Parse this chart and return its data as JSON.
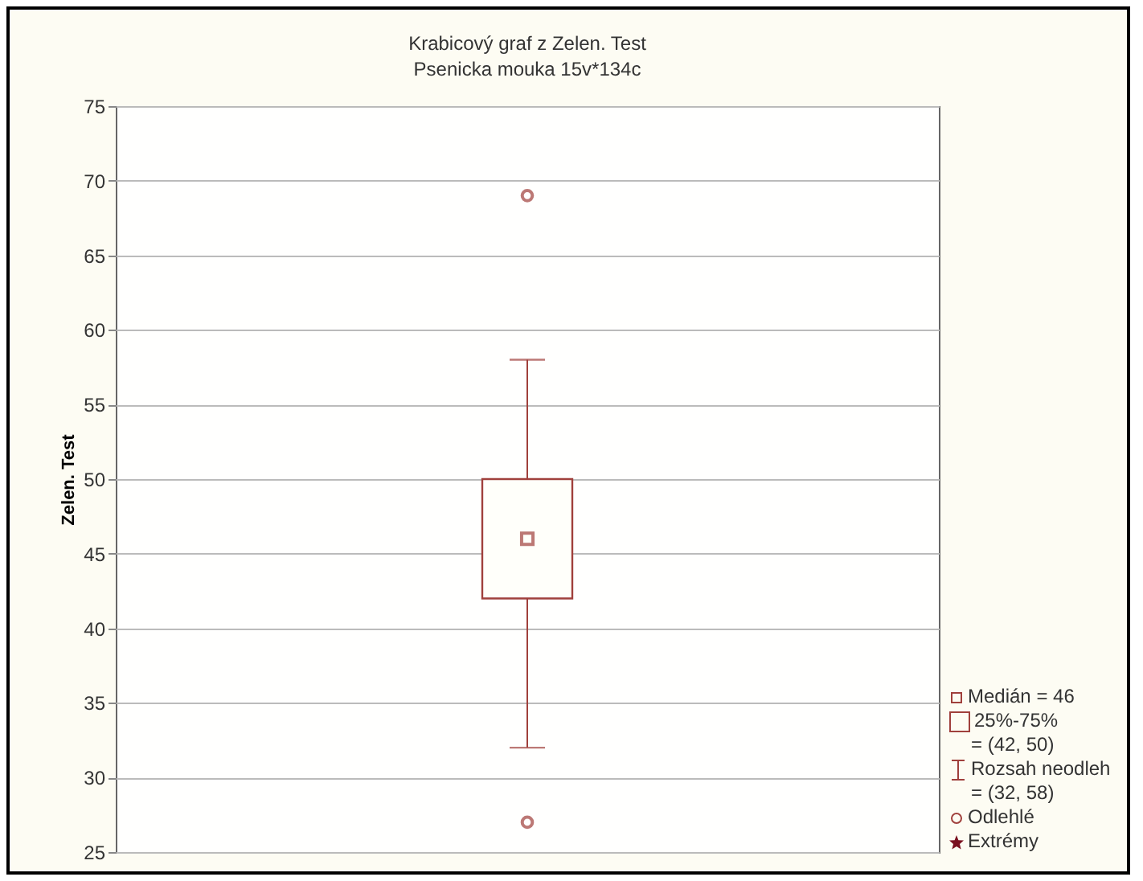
{
  "chart_data": {
    "type": "box",
    "title": "Krabicový graf z Zelen. Test",
    "subtitle": "Psenicka mouka 15v*134c",
    "ylabel": "Zelen. Test",
    "categories": [
      null
    ],
    "boxes": [
      {
        "low": 32,
        "q1": 42,
        "median": 46,
        "q3": 50,
        "high": 58,
        "outliers": [
          27,
          69
        ]
      }
    ],
    "color": "#a0403c",
    "ylim": [
      25,
      75
    ],
    "yticks": [
      25,
      30,
      35,
      40,
      45,
      50,
      55,
      60,
      65,
      70,
      75
    ],
    "grid": "y",
    "annotations": [
      "Medián = 46",
      "25%-75%",
      "= (42, 50)",
      "Rozsah neodleh",
      "= (32, 58)",
      "Odlehlé",
      "Extrémy"
    ]
  }
}
